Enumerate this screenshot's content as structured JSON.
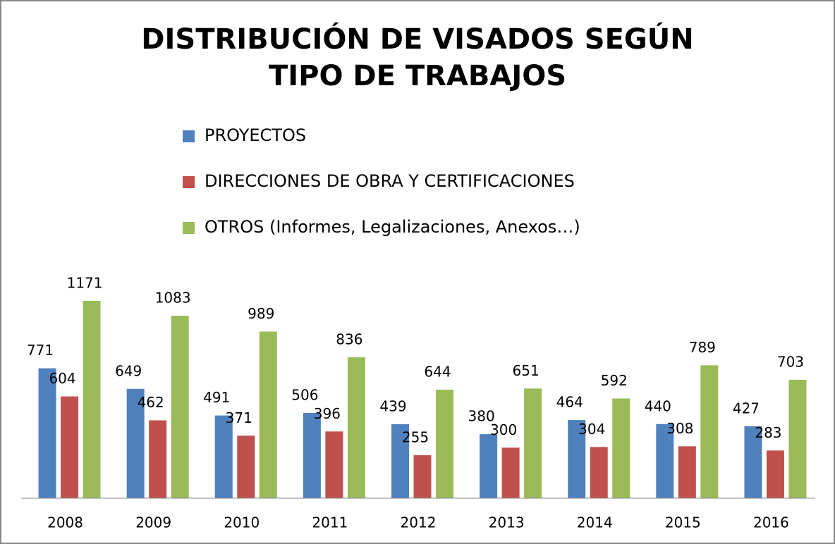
{
  "chart_data": {
    "type": "bar",
    "title": "DISTRIBUCIÓN DE VISADOS SEGÚN TIPO DE TRABAJOS",
    "categories": [
      "2008",
      "2009",
      "2010",
      "2011",
      "2012",
      "2013",
      "2014",
      "2015",
      "2016"
    ],
    "series": [
      {
        "name": "PROYECTOS",
        "color": "#4f81bd",
        "values": [
          771,
          649,
          491,
          506,
          439,
          380,
          464,
          440,
          427
        ]
      },
      {
        "name": "DIRECCIONES DE OBRA Y CERTIFICACIONES",
        "color": "#c0504d",
        "values": [
          604,
          462,
          371,
          396,
          255,
          300,
          304,
          308,
          283
        ]
      },
      {
        "name": "OTROS (Informes, Legalizaciones, Anexos…)",
        "color": "#9bbb59",
        "values": [
          1171,
          1083,
          989,
          836,
          644,
          651,
          592,
          789,
          703
        ]
      }
    ],
    "legend": "top"
  }
}
